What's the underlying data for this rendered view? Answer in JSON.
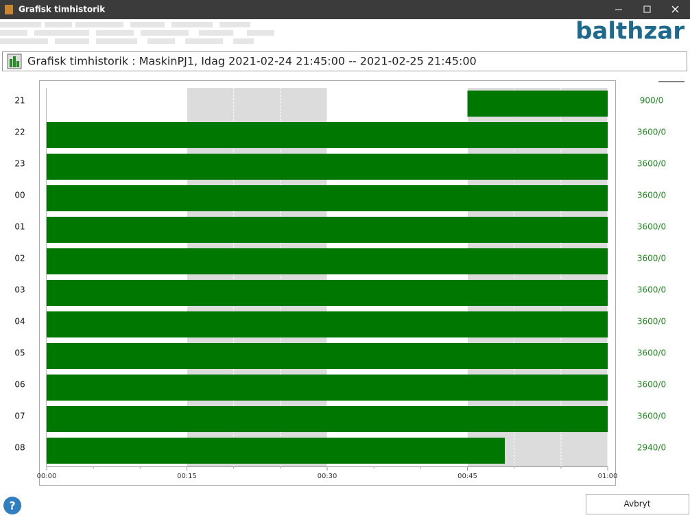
{
  "window": {
    "title": "Grafisk timhistorik",
    "logo": "balthzar"
  },
  "header": {
    "title": "Grafisk timhistorik : MaskinPJ1, Idag 2021-02-24 21:45:00 -- 2021-02-25 21:45:00"
  },
  "chart_data": {
    "type": "bar",
    "orientation": "horizontal",
    "categories": [
      "21",
      "22",
      "23",
      "00",
      "01",
      "02",
      "03",
      "04",
      "05",
      "06",
      "07",
      "08"
    ],
    "starts": [
      2700,
      0,
      0,
      0,
      0,
      0,
      0,
      0,
      0,
      0,
      0,
      0
    ],
    "values": [
      900,
      3600,
      3600,
      3600,
      3600,
      3600,
      3600,
      3600,
      3600,
      3600,
      3600,
      2940
    ],
    "value_labels": [
      "900/0",
      "3600/0",
      "3600/0",
      "3600/0",
      "3600/0",
      "3600/0",
      "3600/0",
      "3600/0",
      "3600/0",
      "3600/0",
      "3600/0",
      "2940/0"
    ],
    "color": "#007800",
    "xlim": [
      0,
      3600
    ],
    "xticks": [
      {
        "value": 0,
        "label": "00:00"
      },
      {
        "value": 900,
        "label": "00:15"
      },
      {
        "value": 1800,
        "label": "00:30"
      },
      {
        "value": 2700,
        "label": "00:45"
      },
      {
        "value": 3600,
        "label": "01:00"
      }
    ],
    "grid": true
  },
  "buttons": {
    "cancel": "Avbryt"
  }
}
